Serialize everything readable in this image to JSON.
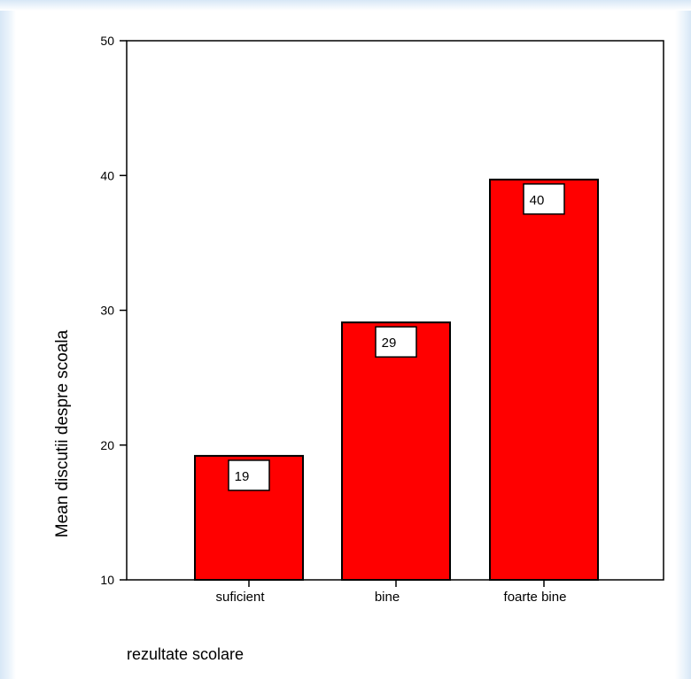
{
  "chart_data": {
    "type": "bar",
    "categories": [
      "suficient",
      "bine",
      "foarte bine"
    ],
    "values": [
      19.2,
      29.1,
      39.7
    ],
    "data_labels": [
      "19",
      "29",
      "40"
    ],
    "title": "",
    "xlabel": "rezultate scolare",
    "ylabel": "Mean discutii despre scoala",
    "ylim": [
      10,
      50
    ],
    "yticks": [
      "10",
      "20",
      "30",
      "40",
      "50"
    ],
    "grid": false,
    "legend": "none",
    "bar_color": "#ff0000",
    "bar_edge_color": "#000000"
  }
}
